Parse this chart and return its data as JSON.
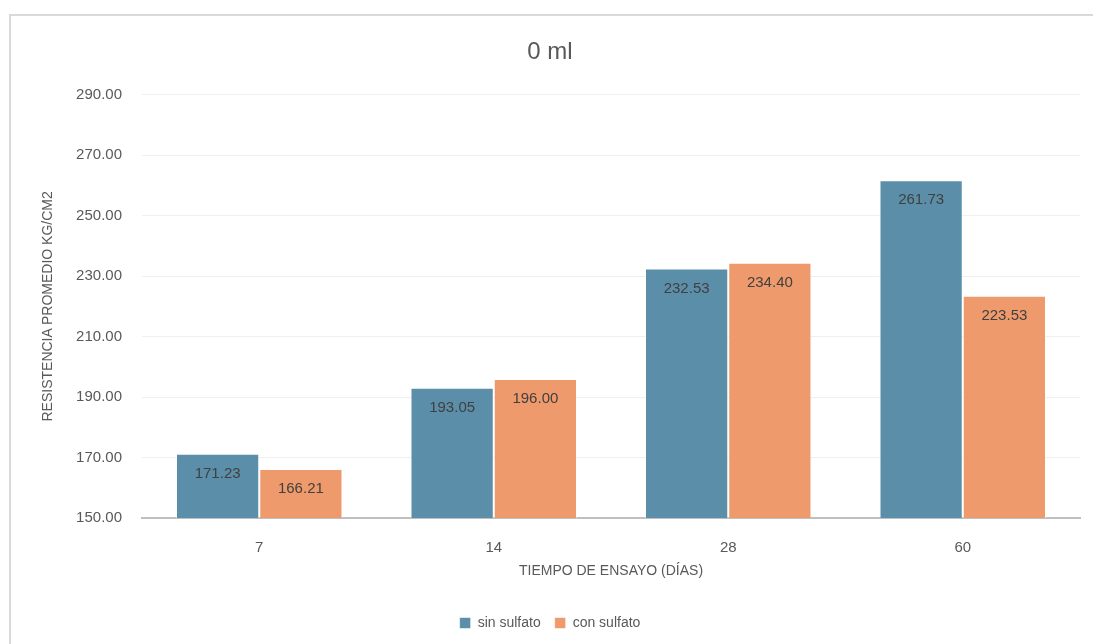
{
  "chart_data": {
    "type": "bar",
    "title": "0 ml",
    "xlabel": "TIEMPO DE ENSAYO (DÍAS)",
    "ylabel": "RESISTENCIA PROMEDIO KG/CM2",
    "categories": [
      "7",
      "14",
      "28",
      "60"
    ],
    "series": [
      {
        "name": "sin sulfato",
        "color": "#5b8ea8",
        "values": [
          171.23,
          193.05,
          232.53,
          261.73
        ],
        "value_labels": [
          "171.23",
          "193.05",
          "232.53",
          "261.73"
        ]
      },
      {
        "name": "con sulfato",
        "color": "#ef9a6c",
        "values": [
          166.21,
          196.0,
          234.4,
          223.53
        ],
        "value_labels": [
          "166.21",
          "196.00",
          "234.40",
          "223.53"
        ]
      }
    ],
    "ylim": [
      150,
      290
    ],
    "yticks": [
      {
        "value": 150,
        "label": "150.00"
      },
      {
        "value": 170,
        "label": "170.00"
      },
      {
        "value": 190,
        "label": "190.00"
      },
      {
        "value": 210,
        "label": "210.00"
      },
      {
        "value": 230,
        "label": "230.00"
      },
      {
        "value": 250,
        "label": "250.00"
      },
      {
        "value": 270,
        "label": "270.00"
      },
      {
        "value": 290,
        "label": "290.00"
      }
    ],
    "grid": "y",
    "legend": "bottom"
  }
}
